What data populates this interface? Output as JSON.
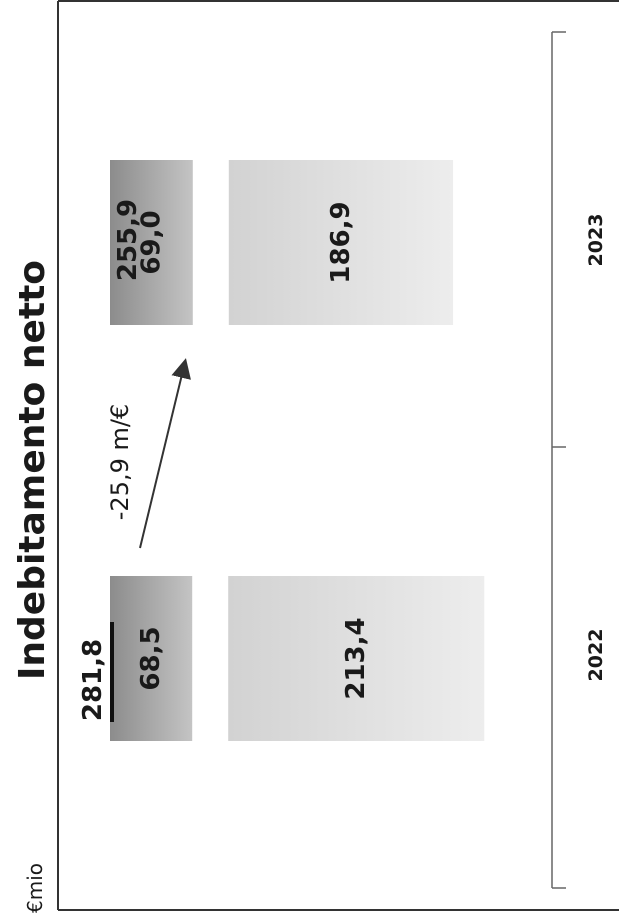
{
  "chart_data": {
    "type": "bar",
    "stacked": true,
    "orientation": "horizontal",
    "title": "Indebitamento netto",
    "unit": "€mio",
    "categories": [
      "2022",
      "2023"
    ],
    "series": [
      {
        "values": [
          68.5,
          69.0
        ],
        "value_labels": [
          "68,5",
          "69,0"
        ]
      },
      {
        "values": [
          213.4,
          186.9
        ],
        "value_labels": [
          "213,4",
          "186,9"
        ]
      }
    ],
    "totals": [
      281.8,
      255.9
    ],
    "total_labels": [
      "281,8",
      "255,9"
    ],
    "change_annotation": "-25,9 m/€",
    "colors": {
      "segment_top": "#9a9a9a",
      "segment_bottom": "#d9d9d9",
      "text": "#1a1a1a"
    }
  }
}
